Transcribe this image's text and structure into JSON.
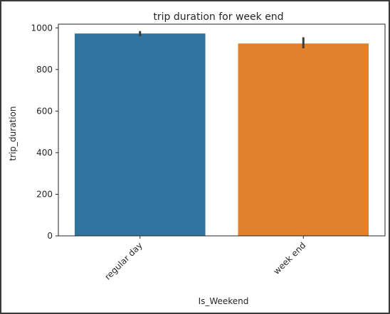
{
  "chart_data": {
    "type": "bar",
    "title": "trip duration for week end",
    "xlabel": "Is_Weekend",
    "ylabel": "trip_duration",
    "categories": [
      "regular day",
      "week end"
    ],
    "values": [
      973,
      925
    ],
    "error_bars": [
      [
        960,
        985
      ],
      [
        902,
        955
      ]
    ],
    "colors": [
      "#3274a1",
      "#e1812c"
    ],
    "ylim": [
      0,
      1000
    ],
    "yticks": [
      0,
      200,
      400,
      600,
      800,
      1000
    ],
    "grid": false
  }
}
